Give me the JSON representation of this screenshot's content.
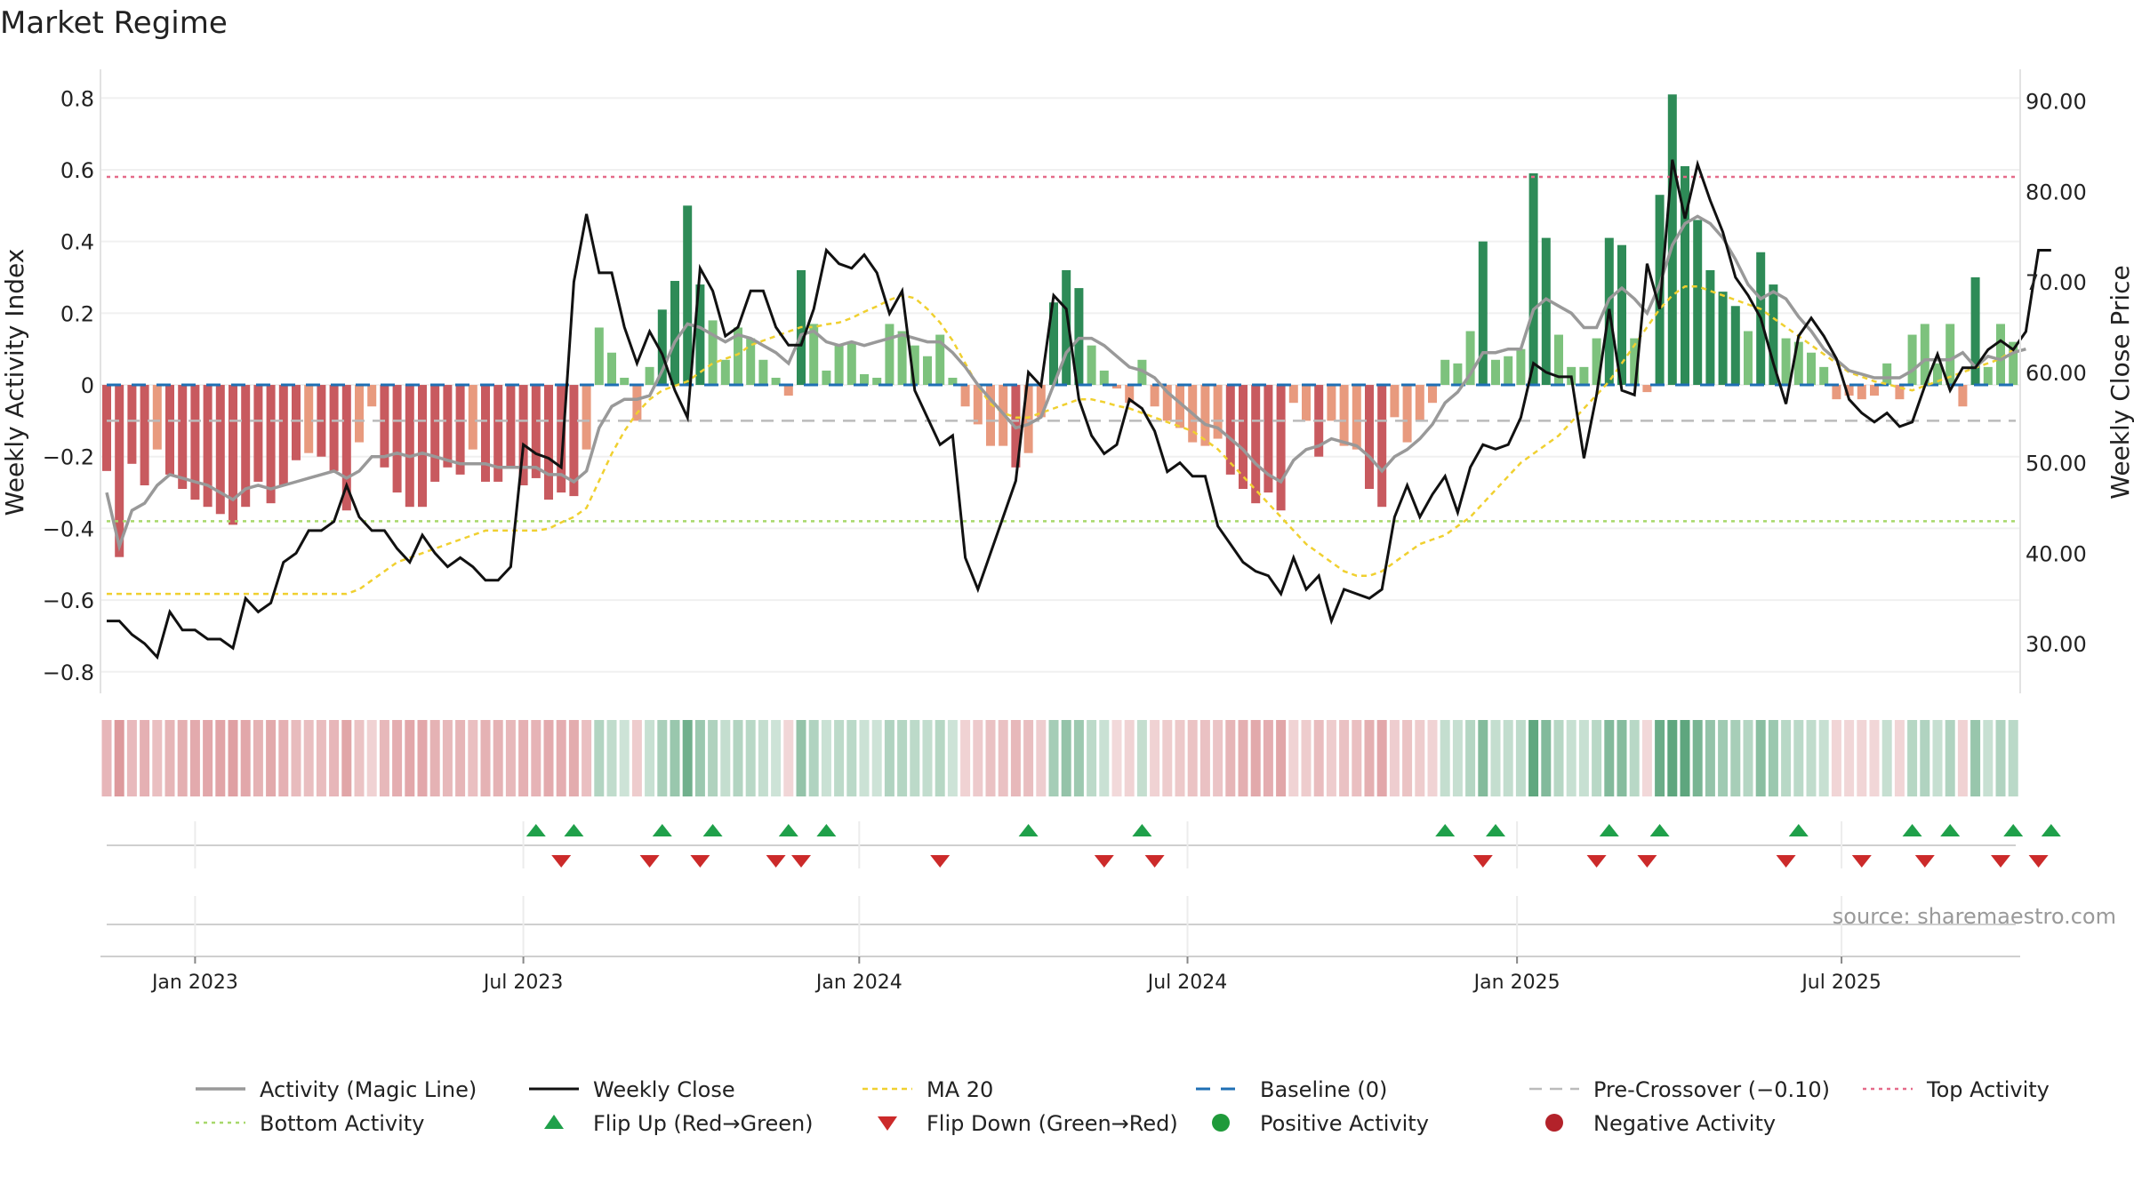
{
  "chart_data": {
    "type": "bar",
    "title": "Market Regime",
    "source": "source: sharemaestro.com",
    "left_axis": {
      "label": "Weekly Activity Index",
      "ylim": [
        -0.86,
        0.88
      ],
      "ticks": [
        "0.8",
        "0.6",
        "0.4",
        "0.2",
        "0",
        "−0.2",
        "−0.4",
        "−0.6",
        "−0.8"
      ],
      "tick_values": [
        0.8,
        0.6,
        0.4,
        0.2,
        0,
        -0.2,
        -0.4,
        -0.6,
        -0.8
      ]
    },
    "right_axis": {
      "label": "Weekly Close Price",
      "ylim": [
        24.5,
        93.5
      ],
      "ticks": [
        "30.00",
        "40.00",
        "50.00",
        "60.00",
        "70.00",
        "80.00",
        "90.00"
      ],
      "tick_values": [
        30,
        40,
        50,
        60,
        70,
        80,
        90
      ]
    },
    "x_axis": {
      "ticks": [
        "Jan 2023",
        "Jul 2023",
        "Jan 2024",
        "Jul 2024",
        "Jan 2025",
        "Jul 2025"
      ],
      "tick_weeks": [
        7,
        33,
        59.6,
        85.6,
        111.7,
        137.4
      ]
    },
    "levels": {
      "top_activity": 0.58,
      "bottom_activity": -0.38,
      "pre_crossover": -0.1,
      "baseline": 0
    },
    "activity": [
      -0.24,
      -0.48,
      -0.22,
      -0.28,
      -0.18,
      -0.25,
      -0.29,
      -0.32,
      -0.34,
      -0.36,
      -0.39,
      -0.34,
      -0.27,
      -0.33,
      -0.28,
      -0.21,
      -0.19,
      -0.2,
      -0.24,
      -0.35,
      -0.16,
      -0.06,
      -0.23,
      -0.3,
      -0.34,
      -0.34,
      -0.27,
      -0.23,
      -0.25,
      -0.18,
      -0.27,
      -0.27,
      -0.23,
      -0.28,
      -0.26,
      -0.32,
      -0.3,
      -0.31,
      -0.18,
      0.16,
      0.09,
      0.02,
      -0.1,
      0.05,
      0.21,
      0.29,
      0.5,
      0.28,
      0.18,
      0.07,
      0.16,
      0.13,
      0.07,
      0.02,
      -0.03,
      0.32,
      0.17,
      0.04,
      0.11,
      0.12,
      0.03,
      0.02,
      0.17,
      0.15,
      0.11,
      0.08,
      0.14,
      0.02,
      -0.06,
      -0.11,
      -0.17,
      -0.17,
      -0.23,
      -0.19,
      -0.09,
      0.23,
      0.32,
      0.27,
      0.11,
      0.04,
      -0.01,
      -0.05,
      0.07,
      -0.06,
      -0.1,
      -0.12,
      -0.16,
      -0.17,
      -0.15,
      -0.25,
      -0.29,
      -0.33,
      -0.3,
      -0.35,
      -0.05,
      -0.1,
      -0.2,
      -0.1,
      -0.17,
      -0.18,
      -0.29,
      -0.34,
      -0.09,
      -0.16,
      -0.1,
      -0.05,
      0.07,
      0.06,
      0.15,
      0.4,
      0.07,
      0.08,
      0.1,
      0.59,
      0.41,
      0.14,
      0.05,
      0.05,
      0.13,
      0.41,
      0.39,
      0.13,
      -0.02,
      0.53,
      0.81,
      0.61,
      0.46,
      0.32,
      0.26,
      0.22,
      0.15,
      0.37,
      0.28,
      0.13,
      0.12,
      0.09,
      0.05,
      -0.04,
      -0.03,
      -0.04,
      -0.03,
      0.06,
      -0.04,
      0.14,
      0.17,
      0.06,
      0.17,
      -0.06,
      0.3,
      0.05,
      0.17,
      0.12
    ],
    "magic_line": [
      -0.3,
      -0.45,
      -0.35,
      -0.33,
      -0.28,
      -0.25,
      -0.26,
      -0.27,
      -0.28,
      -0.3,
      -0.32,
      -0.29,
      -0.28,
      -0.29,
      -0.28,
      -0.27,
      -0.26,
      -0.25,
      -0.24,
      -0.26,
      -0.24,
      -0.2,
      -0.2,
      -0.19,
      -0.2,
      -0.19,
      -0.2,
      -0.21,
      -0.22,
      -0.22,
      -0.22,
      -0.23,
      -0.23,
      -0.23,
      -0.23,
      -0.25,
      -0.25,
      -0.27,
      -0.24,
      -0.12,
      -0.06,
      -0.04,
      -0.04,
      -0.03,
      0.04,
      0.12,
      0.17,
      0.16,
      0.14,
      0.12,
      0.14,
      0.13,
      0.11,
      0.09,
      0.06,
      0.14,
      0.15,
      0.12,
      0.11,
      0.12,
      0.11,
      0.12,
      0.13,
      0.14,
      0.13,
      0.12,
      0.12,
      0.09,
      0.05,
      0.0,
      -0.04,
      -0.08,
      -0.12,
      -0.11,
      -0.09,
      0.0,
      0.09,
      0.13,
      0.13,
      0.11,
      0.08,
      0.05,
      0.04,
      0.02,
      -0.02,
      -0.05,
      -0.08,
      -0.11,
      -0.12,
      -0.15,
      -0.18,
      -0.22,
      -0.25,
      -0.27,
      -0.21,
      -0.18,
      -0.17,
      -0.15,
      -0.16,
      -0.17,
      -0.2,
      -0.24,
      -0.2,
      -0.18,
      -0.15,
      -0.11,
      -0.05,
      -0.02,
      0.03,
      0.09,
      0.09,
      0.1,
      0.1,
      0.21,
      0.24,
      0.22,
      0.2,
      0.16,
      0.16,
      0.24,
      0.27,
      0.24,
      0.2,
      0.28,
      0.39,
      0.45,
      0.47,
      0.45,
      0.41,
      0.35,
      0.28,
      0.24,
      0.26,
      0.24,
      0.19,
      0.15,
      0.1,
      0.07,
      0.04,
      0.03,
      0.02,
      0.02,
      0.02,
      0.04,
      0.07,
      0.07,
      0.07,
      0.09,
      0.05,
      0.08,
      0.07,
      0.09,
      0.1
    ],
    "weekly_close": [
      32.5,
      32.5,
      31.0,
      30.0,
      28.5,
      33.5,
      31.5,
      31.5,
      30.5,
      30.5,
      29.5,
      35.0,
      33.5,
      34.5,
      39.0,
      40.0,
      42.5,
      42.5,
      43.5,
      47.5,
      44.0,
      42.5,
      42.5,
      40.5,
      39.0,
      42.0,
      40.0,
      38.5,
      39.5,
      38.5,
      37.0,
      37.0,
      38.5,
      52.0,
      51.0,
      50.5,
      49.5,
      70.0,
      77.5,
      71.0,
      71.0,
      65.0,
      61.0,
      64.5,
      62.0,
      58.0,
      55.0,
      71.5,
      69.0,
      64.0,
      65.0,
      69.0,
      69.0,
      65.0,
      63.0,
      63.0,
      67.0,
      73.5,
      72.0,
      71.5,
      73.0,
      71.0,
      66.5,
      69.0,
      58.0,
      55.0,
      52.0,
      53.0,
      39.5,
      36.0,
      40.0,
      44.0,
      48.0,
      60.0,
      58.5,
      68.5,
      67.0,
      57.0,
      53.0,
      51.0,
      52.0,
      57.0,
      56.0,
      53.5,
      49.0,
      50.0,
      48.5,
      48.5,
      43.0,
      41.0,
      39.0,
      38.0,
      37.5,
      35.5,
      39.5,
      36.0,
      37.5,
      32.5,
      36.0,
      35.5,
      35.0,
      36.0,
      44.0,
      47.5,
      44.0,
      46.5,
      48.5,
      44.5,
      49.5,
      52.0,
      51.5,
      52.0,
      55.0,
      61.0,
      60.0,
      59.5,
      59.5,
      50.5,
      57.5,
      67.0,
      58.0,
      57.5,
      72.0,
      67.0,
      83.5,
      77.0,
      83.0,
      79.0,
      75.5,
      70.5,
      68.5,
      66.0,
      61.0,
      56.5,
      64.0,
      66.0,
      64.0,
      61.5,
      57.0,
      55.5,
      54.5,
      55.5,
      54.0,
      54.5,
      58.5,
      62.0,
      58.0,
      60.5,
      60.5,
      62.5,
      63.5,
      62.5,
      64.5,
      73.5,
      73.5
    ],
    "ma20": [
      35.5,
      35.5,
      35.5,
      35.5,
      35.5,
      35.5,
      35.5,
      35.5,
      35.5,
      35.5,
      35.5,
      35.5,
      35.5,
      35.5,
      35.5,
      35.5,
      35.5,
      35.5,
      35.5,
      35.5,
      36.0,
      37.0,
      38.0,
      39.0,
      39.5,
      40.0,
      40.5,
      41.0,
      41.5,
      42.0,
      42.5,
      42.5,
      42.5,
      42.5,
      42.5,
      42.7,
      43.4,
      44.0,
      45.0,
      48.0,
      51.0,
      53.5,
      55.5,
      57.0,
      58.0,
      58.5,
      59.0,
      60.0,
      61.0,
      61.5,
      62.0,
      63.0,
      63.5,
      64.0,
      64.5,
      65.0,
      65.0,
      65.3,
      65.5,
      66.0,
      66.7,
      67.3,
      68.0,
      68.5,
      68.2,
      67.0,
      65.5,
      63.5,
      61.0,
      58.5,
      56.5,
      55.5,
      55.0,
      55.0,
      55.5,
      56.0,
      56.5,
      57.0,
      57.0,
      56.7,
      56.3,
      56.0,
      55.5,
      55.0,
      54.5,
      54.0,
      53.5,
      52.5,
      51.5,
      50.0,
      48.5,
      47.0,
      45.5,
      44.0,
      42.5,
      41.0,
      40.0,
      39.0,
      38.0,
      37.5,
      37.5,
      38.0,
      39.0,
      40.0,
      41.0,
      41.5,
      42.0,
      43.0,
      44.0,
      45.5,
      47.0,
      48.5,
      50.0,
      51.0,
      52.0,
      53.0,
      54.5,
      56.0,
      57.5,
      59.0,
      61.0,
      63.0,
      65.0,
      67.0,
      68.5,
      69.5,
      69.5,
      69.0,
      68.5,
      68.0,
      67.5,
      67.0,
      66.0,
      65.0,
      64.0,
      63.0,
      62.0,
      61.0,
      60.0,
      59.5,
      59.0,
      58.7,
      58.3,
      58.0,
      58.5,
      59.0,
      59.5,
      60.0,
      60.5,
      61.0,
      61.5,
      62.5
    ],
    "flip_up_weeks": [
      34,
      37,
      44,
      48,
      54,
      57,
      73,
      82,
      106,
      110,
      119,
      123,
      134,
      143,
      146,
      151,
      154
    ],
    "flip_down_weeks": [
      36,
      43,
      47,
      53,
      55,
      66,
      79,
      83,
      109,
      118,
      122,
      133,
      139,
      144,
      150,
      153
    ],
    "legend": [
      "Activity (Magic Line)",
      "Weekly Close",
      "MA 20",
      "Baseline (0)",
      "Pre-Crossover (−0.10)",
      "Top Activity",
      "Bottom Activity",
      "Flip Up (Red→Green)",
      "Flip Down (Green→Red)",
      "Positive Activity",
      "Negative Activity"
    ],
    "colors": {
      "strong_green": "#2e8b57",
      "light_green": "#7dc27d",
      "strong_red": "#c85a5f",
      "light_red": "#e89a7e",
      "magic_line": "#999999",
      "close": "#111111",
      "ma20": "#f0d030",
      "baseline": "#1f6fb4",
      "pre_crossover": "#bbbbbb",
      "top_activity": "#e56b8a",
      "bottom_activity": "#a7d86b",
      "flip_up": "#1fa04a",
      "flip_down": "#cc2a2a",
      "positive": "#1f9a3a",
      "negative": "#b3222a"
    }
  }
}
